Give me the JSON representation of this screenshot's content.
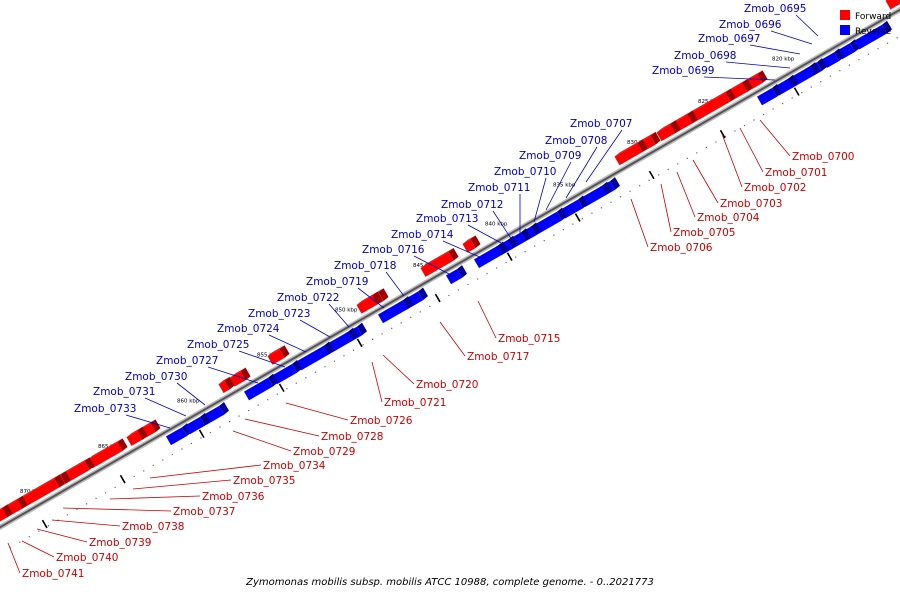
{
  "caption": "Zymomonas mobilis subsp. mobilis ATCC 10988, complete genome. - 0..2021773",
  "colors": {
    "forward": "#ff0000",
    "reverse": "#0000ff",
    "forward_label": "#cc0000",
    "reverse_label": "#0000cc",
    "backbone": "#888888"
  },
  "legend": [
    {
      "name": "Forward",
      "color": "#ff0000"
    },
    {
      "name": "Reverse",
      "color": "#0000ff"
    }
  ],
  "ticks": [
    {
      "label": "820 kbp",
      "kbp": 820
    },
    {
      "label": "825 kbp",
      "kbp": 825
    },
    {
      "label": "830 kbp",
      "kbp": 830
    },
    {
      "label": "835 kbp",
      "kbp": 835
    },
    {
      "label": "840 kbp",
      "kbp": 840
    },
    {
      "label": "845 kbp",
      "kbp": 845
    },
    {
      "label": "850 kbp",
      "kbp": 850
    },
    {
      "label": "855 kbp",
      "kbp": 855
    },
    {
      "label": "860 kbp",
      "kbp": 860
    },
    {
      "label": "865 kbp",
      "kbp": 865
    },
    {
      "label": "870 kbp",
      "kbp": 870
    }
  ],
  "reverse_genes": [
    "Zmob_0695",
    "Zmob_0696",
    "Zmob_0697",
    "Zmob_0698",
    "Zmob_0699",
    "Zmob_0707",
    "Zmob_0708",
    "Zmob_0709",
    "Zmob_0710",
    "Zmob_0711",
    "Zmob_0712",
    "Zmob_0713",
    "Zmob_0714",
    "Zmob_0716",
    "Zmob_0718",
    "Zmob_0719",
    "Zmob_0722",
    "Zmob_0723",
    "Zmob_0724",
    "Zmob_0725",
    "Zmob_0727",
    "Zmob_0730",
    "Zmob_0731",
    "Zmob_0733"
  ],
  "forward_genes": [
    "Zmob_0700",
    "Zmob_0701",
    "Zmob_0702",
    "Zmob_0703",
    "Zmob_0704",
    "Zmob_0705",
    "Zmob_0706",
    "Zmob_0715",
    "Zmob_0717",
    "Zmob_0720",
    "Zmob_0721",
    "Zmob_0726",
    "Zmob_0728",
    "Zmob_0729",
    "Zmob_0734",
    "Zmob_0735",
    "Zmob_0736",
    "Zmob_0737",
    "Zmob_0738",
    "Zmob_0739",
    "Zmob_0740",
    "Zmob_0741"
  ]
}
